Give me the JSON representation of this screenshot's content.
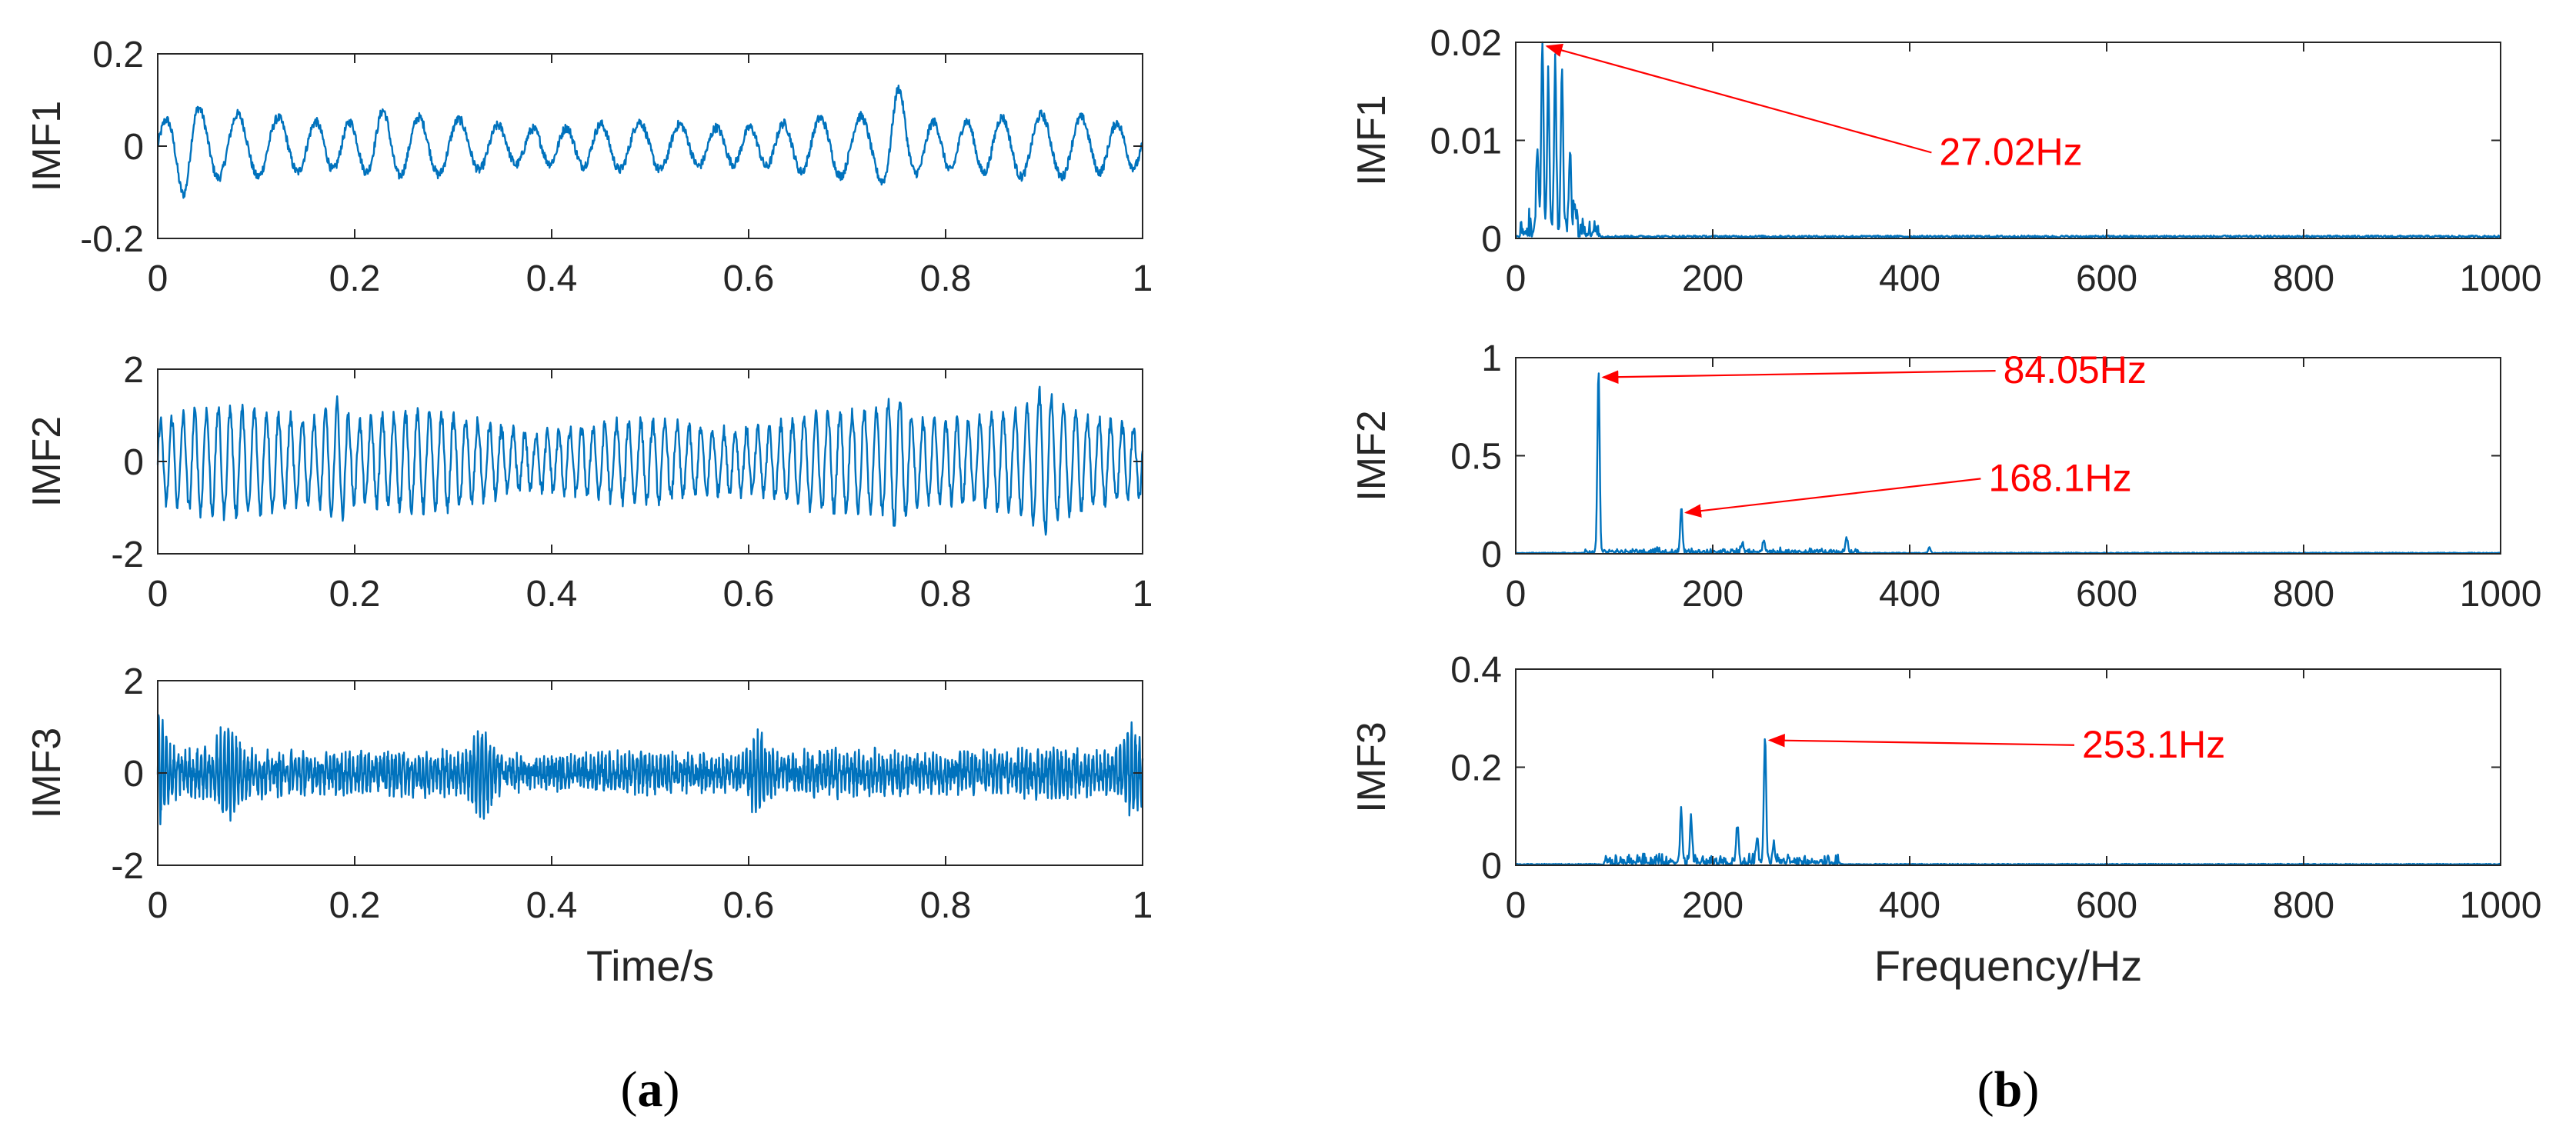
{
  "figure": {
    "panel_a_label": {
      "open": "(",
      "letter": "a",
      "close": ")"
    },
    "panel_b_label": {
      "open": "(",
      "letter": "b",
      "close": ")"
    }
  },
  "colors": {
    "line": "#0072BD",
    "annotation": "#FF0000",
    "axis": "#262626"
  },
  "chart_data": [
    {
      "id": "a1",
      "type": "line",
      "ylabel": "IMF1",
      "xlabel": "",
      "xlim": [
        0,
        1
      ],
      "ylim": [
        -0.2,
        0.2
      ],
      "xticks": [
        0,
        0.2,
        0.4,
        0.6,
        0.8,
        1
      ],
      "xticklabels": [
        "0",
        "0.2",
        "0.4",
        "0.6",
        "0.8",
        "1"
      ],
      "yticks": [
        -0.2,
        0,
        0.2
      ],
      "yticklabels": [
        "-0.2",
        "0",
        "0.2"
      ],
      "signal": {
        "kind": "oscillation",
        "freq": 27.02,
        "amp": 0.07,
        "noise": 0.01,
        "bursts": [
          [
            0.03,
            0.12
          ],
          [
            0.23,
            0.09
          ],
          [
            0.75,
            0.14
          ]
        ]
      },
      "annotations": []
    },
    {
      "id": "a2",
      "type": "line",
      "ylabel": "IMF2",
      "xlabel": "",
      "xlim": [
        0,
        1
      ],
      "ylim": [
        -2,
        2
      ],
      "xticks": [
        0,
        0.2,
        0.4,
        0.6,
        0.8,
        1
      ],
      "xticklabels": [
        "0",
        "0.2",
        "0.4",
        "0.6",
        "0.8",
        "1"
      ],
      "yticks": [
        -2,
        0,
        2
      ],
      "yticklabels": [
        "-2",
        "0",
        "2"
      ],
      "signal": {
        "kind": "oscillation",
        "freq": 84.05,
        "amp": 1.15,
        "noise": 0.15,
        "bursts": [
          [
            0.18,
            1.6
          ],
          [
            0.75,
            1.6
          ],
          [
            0.9,
            1.6
          ]
        ]
      },
      "annotations": []
    },
    {
      "id": "a3",
      "type": "line",
      "ylabel": "IMF3",
      "xlabel": "Time/s",
      "xlim": [
        0,
        1
      ],
      "ylim": [
        -2,
        2
      ],
      "xticks": [
        0,
        0.2,
        0.4,
        0.6,
        0.8,
        1
      ],
      "xticklabels": [
        "0",
        "0.2",
        "0.4",
        "0.6",
        "0.8",
        "1"
      ],
      "yticks": [
        -2,
        0,
        2
      ],
      "yticklabels": [
        "-2",
        "0",
        "2"
      ],
      "signal": {
        "kind": "oscillation",
        "freq": 253.1,
        "amp": 0.35,
        "noise": 0.25,
        "bursts": [
          [
            0.0,
            1.2
          ],
          [
            0.07,
            0.9
          ],
          [
            0.33,
            0.9
          ],
          [
            0.61,
            0.9
          ],
          [
            0.99,
            1.0
          ]
        ]
      },
      "annotations": []
    },
    {
      "id": "b1",
      "type": "line",
      "ylabel": "IMF1",
      "xlabel": "",
      "xlim": [
        0,
        1000
      ],
      "ylim": [
        0,
        0.02
      ],
      "xticks": [
        0,
        200,
        400,
        600,
        800,
        1000
      ],
      "xticklabels": [
        "0",
        "200",
        "400",
        "600",
        "800",
        "1000"
      ],
      "yticks": [
        0,
        0.01,
        0.02
      ],
      "yticklabels": [
        "0",
        "0.01",
        "0.02"
      ],
      "spectrum": {
        "peaks": [
          [
            27.02,
            0.02
          ],
          [
            33,
            0.015
          ],
          [
            40,
            0.017
          ],
          [
            47,
            0.016
          ],
          [
            22,
            0.009
          ],
          [
            55,
            0.008
          ],
          [
            60,
            0.003
          ]
        ],
        "band": [
          5,
          85,
          0.003
        ],
        "floor": 0.0002
      },
      "annotations": [
        {
          "text": "27.02Hz",
          "point": [
            27.02,
            0.0196
          ],
          "text_at": [
            430,
            0.0075
          ]
        }
      ]
    },
    {
      "id": "b2",
      "type": "line",
      "ylabel": "IMF2",
      "xlabel": "",
      "xlim": [
        0,
        1000
      ],
      "ylim": [
        0,
        1
      ],
      "xticks": [
        0,
        200,
        400,
        600,
        800,
        1000
      ],
      "xticklabels": [
        "0",
        "200",
        "400",
        "600",
        "800",
        "1000"
      ],
      "yticks": [
        0,
        0.5,
        1
      ],
      "yticklabels": [
        "0",
        "0.5",
        "1"
      ],
      "spectrum": {
        "peaks": [
          [
            84.05,
            0.92
          ],
          [
            168.1,
            0.22
          ],
          [
            252,
            0.06
          ],
          [
            336,
            0.07
          ],
          [
            230,
            0.04
          ],
          [
            420,
            0.03
          ]
        ],
        "band": [
          70,
          350,
          0.03
        ],
        "floor": 0.004
      },
      "annotations": [
        {
          "text": "84.05Hz",
          "point": [
            84.05,
            0.9
          ],
          "text_at": [
            495,
            0.87
          ]
        },
        {
          "text": "168.1Hz",
          "point": [
            168.1,
            0.21
          ],
          "text_at": [
            480,
            0.32
          ]
        }
      ]
    },
    {
      "id": "b3",
      "type": "line",
      "ylabel": "IMF3",
      "xlabel": "Frequency/Hz",
      "xlim": [
        0,
        1000
      ],
      "ylim": [
        0,
        0.4
      ],
      "xticks": [
        0,
        200,
        400,
        600,
        800,
        1000
      ],
      "xticklabels": [
        "0",
        "200",
        "400",
        "600",
        "800",
        "1000"
      ],
      "yticks": [
        0,
        0.2,
        0.4
      ],
      "yticklabels": [
        "0",
        "0.2",
        "0.4"
      ],
      "spectrum": {
        "peaks": [
          [
            253.1,
            0.26
          ],
          [
            168,
            0.1
          ],
          [
            178,
            0.09
          ],
          [
            225,
            0.07
          ],
          [
            245,
            0.05
          ],
          [
            262,
            0.04
          ]
        ],
        "band": [
          90,
          330,
          0.025
        ],
        "floor": 0.002
      },
      "annotations": [
        {
          "text": "253.1Hz",
          "point": [
            253.1,
            0.255
          ],
          "text_at": [
            575,
            0.22
          ]
        }
      ]
    }
  ]
}
